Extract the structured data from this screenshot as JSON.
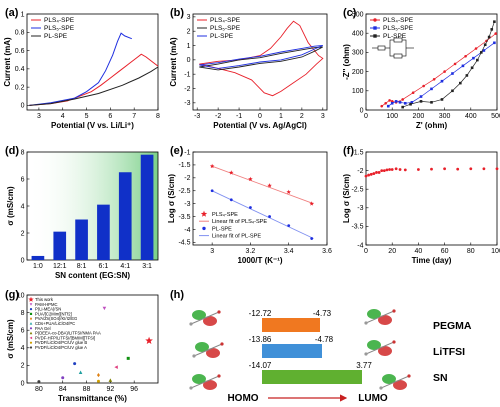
{
  "chart_data": [
    {
      "panel": "(a)",
      "type": "line",
      "xlabel": "Potential (V vs. Li/Li⁺)",
      "ylabel": "Current (mA)",
      "xlim": [
        2.5,
        8
      ],
      "ylim": [
        -0.05,
        1.0
      ],
      "xticks": [
        3,
        4,
        5,
        6,
        7,
        8
      ],
      "yticks": [
        0.0,
        0.2,
        0.4,
        0.6,
        0.8,
        1.0
      ],
      "legend_position": "top-left",
      "series": [
        {
          "name": "PLS₄-SPE",
          "color": "#e8202a",
          "points": [
            [
              2.6,
              0.0
            ],
            [
              3.5,
              0.02
            ],
            [
              4.2,
              0.05
            ],
            [
              4.7,
              0.1
            ],
            [
              5.2,
              0.15
            ],
            [
              5.6,
              0.22
            ],
            [
              6.0,
              0.3
            ],
            [
              6.4,
              0.38
            ],
            [
              6.8,
              0.46
            ],
            [
              7.1,
              0.52
            ],
            [
              7.3,
              0.56
            ],
            [
              7.5,
              0.53
            ],
            [
              7.8,
              0.47
            ],
            [
              8.0,
              0.43
            ]
          ]
        },
        {
          "name": "PLS₅-SPE",
          "color": "#1f2fe0",
          "points": [
            [
              2.6,
              0.0
            ],
            [
              3.5,
              0.03
            ],
            [
              4.5,
              0.08
            ],
            [
              5.0,
              0.15
            ],
            [
              5.5,
              0.25
            ],
            [
              5.8,
              0.38
            ],
            [
              6.1,
              0.55
            ],
            [
              6.3,
              0.7
            ],
            [
              6.45,
              0.79
            ],
            [
              6.6,
              0.76
            ],
            [
              6.9,
              0.73
            ]
          ]
        },
        {
          "name": "PL-SPE",
          "color": "#222222",
          "points": [
            [
              2.6,
              0.0
            ],
            [
              3.5,
              0.02
            ],
            [
              4.5,
              0.07
            ],
            [
              5.5,
              0.13
            ],
            [
              6.5,
              0.22
            ],
            [
              7.2,
              0.3
            ],
            [
              7.7,
              0.37
            ],
            [
              8.0,
              0.42
            ]
          ]
        }
      ]
    },
    {
      "panel": "(b)",
      "type": "line",
      "xlabel": "Potential (V vs. Ag/AgCl)",
      "ylabel": "Current (mA)",
      "xlim": [
        -3.2,
        3.2
      ],
      "ylim": [
        -3.5,
        3.2
      ],
      "xticks": [
        -3,
        -2,
        -1,
        0,
        1,
        2,
        3
      ],
      "yticks": [
        -3,
        -2,
        -1,
        0,
        1,
        2,
        3
      ],
      "legend_position": "top-left",
      "series": [
        {
          "name": "PLS₄-SPE",
          "color": "#e8202a",
          "points": [
            [
              -2.9,
              -0.3
            ],
            [
              -2.0,
              -0.1
            ],
            [
              -1.0,
              0.0
            ],
            [
              0.0,
              0.3
            ],
            [
              0.5,
              0.8
            ],
            [
              1.0,
              1.6
            ],
            [
              1.3,
              2.2
            ],
            [
              1.6,
              2.7
            ],
            [
              1.9,
              2.4
            ],
            [
              2.3,
              1.2
            ],
            [
              2.8,
              0.3
            ],
            [
              3.0,
              0.1
            ],
            [
              2.7,
              -0.3
            ],
            [
              2.2,
              -1.0
            ],
            [
              1.6,
              -1.6
            ],
            [
              1.0,
              -2.2
            ],
            [
              0.6,
              -2.5
            ],
            [
              0.2,
              -2.3
            ],
            [
              -0.4,
              -1.4
            ],
            [
              -1.2,
              -0.9
            ],
            [
              -2.0,
              -0.6
            ],
            [
              -2.9,
              -0.3
            ]
          ]
        },
        {
          "name": "PLS₅-SPE",
          "color": "#222222",
          "points": [
            [
              -2.9,
              -0.5
            ],
            [
              -2.0,
              -0.3
            ],
            [
              -1.0,
              0.0
            ],
            [
              0.0,
              0.15
            ],
            [
              1.0,
              0.45
            ],
            [
              2.0,
              0.7
            ],
            [
              2.6,
              0.85
            ],
            [
              3.0,
              0.9
            ],
            [
              2.6,
              0.6
            ],
            [
              2.0,
              0.2
            ],
            [
              1.0,
              -0.1
            ],
            [
              0.0,
              -0.25
            ],
            [
              -1.0,
              -0.5
            ],
            [
              -2.0,
              -0.7
            ],
            [
              -2.9,
              -0.5
            ]
          ]
        },
        {
          "name": "PL-SPE",
          "color": "#1f2fe0",
          "points": [
            [
              -2.9,
              -0.35
            ],
            [
              -2.0,
              -0.2
            ],
            [
              -1.0,
              0.05
            ],
            [
              0.0,
              0.25
            ],
            [
              1.0,
              0.55
            ],
            [
              2.0,
              0.8
            ],
            [
              2.6,
              0.95
            ],
            [
              3.0,
              1.0
            ],
            [
              2.6,
              0.75
            ],
            [
              2.0,
              0.35
            ],
            [
              1.0,
              0.0
            ],
            [
              0.0,
              -0.15
            ],
            [
              -1.0,
              -0.4
            ],
            [
              -2.0,
              -0.6
            ],
            [
              -2.9,
              -0.35
            ]
          ]
        }
      ]
    },
    {
      "panel": "(c)",
      "type": "scatter",
      "xlabel": "Z' (ohm)",
      "ylabel": "-Z'' (ohm)",
      "xlim": [
        0,
        500
      ],
      "ylim": [
        0,
        500
      ],
      "xticks": [
        0,
        100,
        200,
        300,
        400,
        500
      ],
      "yticks": [
        0,
        100,
        200,
        300,
        400,
        500
      ],
      "legend_position": "top-left",
      "series": [
        {
          "name": "PLS₄-SPE",
          "color": "#e8202a",
          "points": [
            [
              60,
              20
            ],
            [
              75,
              35
            ],
            [
              90,
              50
            ],
            [
              100,
              45
            ],
            [
              115,
              40
            ],
            [
              140,
              55
            ],
            [
              180,
              90
            ],
            [
              220,
              125
            ],
            [
              260,
              160
            ],
            [
              300,
              200
            ],
            [
              340,
              240
            ],
            [
              380,
              280
            ],
            [
              420,
              320
            ],
            [
              460,
              360
            ],
            [
              495,
              398
            ]
          ]
        },
        {
          "name": "PLS₅-SPE",
          "color": "#1f2fe0",
          "points": [
            [
              85,
              20
            ],
            [
              100,
              35
            ],
            [
              115,
              45
            ],
            [
              130,
              40
            ],
            [
              150,
              35
            ],
            [
              175,
              40
            ],
            [
              210,
              70
            ],
            [
              250,
              110
            ],
            [
              290,
              150
            ],
            [
              330,
              190
            ],
            [
              370,
              230
            ],
            [
              410,
              270
            ],
            [
              450,
              310
            ],
            [
              490,
              350
            ]
          ]
        },
        {
          "name": "PL-SPE",
          "color": "#222222",
          "points": [
            [
              140,
              15
            ],
            [
              170,
              30
            ],
            [
              210,
              45
            ],
            [
              250,
              40
            ],
            [
              290,
              55
            ],
            [
              330,
              100
            ],
            [
              360,
              140
            ],
            [
              385,
              180
            ],
            [
              405,
              220
            ],
            [
              425,
              260
            ],
            [
              440,
              300
            ],
            [
              455,
              340
            ],
            [
              470,
              380
            ],
            [
              480,
              420
            ],
            [
              490,
              460
            ]
          ]
        }
      ]
    },
    {
      "panel": "(d)",
      "type": "bar",
      "xlabel": "SN content (EG:SN)",
      "ylabel": "σ (mS/cm)",
      "categories": [
        "1:0",
        "12:1",
        "8:1",
        "6:1",
        "4:1",
        "3:1"
      ],
      "values": [
        0.3,
        2.1,
        3.0,
        4.1,
        6.5,
        7.8
      ],
      "ylim": [
        0,
        8
      ],
      "yticks": [
        0,
        2,
        4,
        6,
        8
      ],
      "colors": {
        "bar": "#1030c8",
        "gradient": "#4ec060"
      }
    },
    {
      "panel": "(e)",
      "type": "scatter",
      "xlabel": "1000/T (K⁻¹)",
      "ylabel": "Log σ (S/cm)",
      "xlim": [
        2.9,
        3.6
      ],
      "ylim": [
        -4.6,
        -1.0
      ],
      "xticks": [
        3.0,
        3.2,
        3.4,
        3.6
      ],
      "yticks": [
        -4.5,
        -4.0,
        -3.5,
        -3.0,
        -2.5,
        -2.0,
        -1.5,
        -1.0
      ],
      "legend_position": "bottom-left",
      "series": [
        {
          "name": "PLS₄-SPE",
          "color": "#e8202a",
          "points": [
            [
              3.0,
              -1.55
            ],
            [
              3.1,
              -1.8
            ],
            [
              3.2,
              -2.05
            ],
            [
              3.3,
              -2.3
            ],
            [
              3.4,
              -2.55
            ],
            [
              3.52,
              -3.0
            ]
          ]
        },
        {
          "name": "Linear fit of PLS₄-SPE",
          "color": "#f08080",
          "points": [
            [
              3.0,
              -1.55
            ],
            [
              3.53,
              -3.0
            ]
          ]
        },
        {
          "name": "PL-SPE",
          "color": "#1f2fe0",
          "points": [
            [
              3.0,
              -2.5
            ],
            [
              3.1,
              -2.85
            ],
            [
              3.2,
              -3.15
            ],
            [
              3.3,
              -3.5
            ],
            [
              3.4,
              -3.85
            ],
            [
              3.52,
              -4.35
            ]
          ]
        },
        {
          "name": "Linear fit of PL-SPE",
          "color": "#8090f0",
          "points": [
            [
              3.0,
              -2.5
            ],
            [
              3.53,
              -4.35
            ]
          ]
        }
      ]
    },
    {
      "panel": "(f)",
      "type": "scatter",
      "xlabel": "Time (day)",
      "ylabel": "Log σ (S/cm)",
      "xlim": [
        0,
        100
      ],
      "ylim": [
        -4.0,
        -1.5
      ],
      "xticks": [
        0,
        20,
        40,
        60,
        80,
        100
      ],
      "yticks": [
        -4.0,
        -3.5,
        -3.0,
        -2.5,
        -2.0,
        -1.5
      ],
      "series": [
        {
          "name": "",
          "color": "#e8202a",
          "points": [
            [
              0,
              -2.15
            ],
            [
              2,
              -2.12
            ],
            [
              4,
              -2.1
            ],
            [
              6,
              -2.08
            ],
            [
              8,
              -2.05
            ],
            [
              10,
              -2.05
            ],
            [
              12,
              -2.0
            ],
            [
              14,
              -2.0
            ],
            [
              16,
              -1.98
            ],
            [
              18,
              -1.97
            ],
            [
              20,
              -1.97
            ],
            [
              23,
              -1.95
            ],
            [
              26,
              -1.97
            ],
            [
              30,
              -1.98
            ],
            [
              40,
              -1.97
            ],
            [
              50,
              -1.96
            ],
            [
              60,
              -1.95
            ],
            [
              70,
              -1.96
            ],
            [
              80,
              -1.95
            ],
            [
              90,
              -1.95
            ],
            [
              100,
              -1.95
            ]
          ]
        }
      ]
    },
    {
      "panel": "(g)",
      "type": "scatter",
      "xlabel": "Transmittance (%)",
      "ylabel": "σ (mS/cm)",
      "xlim": [
        78,
        100
      ],
      "ylim": [
        0,
        10
      ],
      "xticks": [
        80,
        84,
        88,
        92,
        96
      ],
      "yticks": [
        0,
        2,
        4,
        6,
        8,
        10
      ],
      "legend_position": "top-left",
      "series": [
        {
          "name": "This work",
          "color": "#e8202a",
          "marker": "star",
          "points": [
            [
              98.5,
              4.8
            ]
          ]
        },
        {
          "name": "PAM-HPMC",
          "color": "#c050c0",
          "marker": "v",
          "points": [
            [
              91,
              8.5
            ]
          ]
        },
        {
          "name": "P(Li-MEA)/SN",
          "color": "#2040c0",
          "marker": "o",
          "points": [
            [
              86,
              2.2
            ]
          ]
        },
        {
          "name": "PUA/[C2Mim][NTf2]",
          "color": "#109010",
          "marker": "s",
          "points": [
            [
              95,
              2.8
            ]
          ]
        },
        {
          "name": "PVA/Zn(SO4)/KI/I2/EG",
          "color": "#e08010",
          "marker": "d",
          "points": [
            [
              90,
              0.9
            ]
          ]
        },
        {
          "name": "CDs+PUA/LiClO4/PC",
          "color": "#20a0a0",
          "marker": "^",
          "points": [
            [
              87,
              1.2
            ]
          ]
        },
        {
          "name": "PAA Gel",
          "color": "#8040c0",
          "marker": "o",
          "points": [
            [
              84,
              0.6
            ]
          ]
        },
        {
          "name": "P(DEEA-co-DBA)/LiTFSI/NMA PAA",
          "color": "#808000",
          "marker": "^",
          "points": [
            [
              92,
              0.3
            ]
          ]
        },
        {
          "name": "PVDF-HFP/LiTFSI/[BMIM][TFSI]",
          "color": "#e04080",
          "marker": "<",
          "points": [
            [
              93,
              1.8
            ]
          ]
        },
        {
          "name": "PVDF/LiClO4/PC/UV glue B",
          "color": "#d0a000",
          "marker": "o",
          "points": [
            [
              90,
              0.2
            ]
          ]
        },
        {
          "name": "PVDF/LiClO4/PC/UV glue A",
          "color": "#404040",
          "marker": "o",
          "points": [
            [
              80,
              0.15
            ]
          ]
        }
      ]
    },
    {
      "panel": "(h)",
      "type": "bar",
      "xlabel": "",
      "ylabel": "",
      "categories": [
        "PEGMA",
        "LiTFSI",
        "SN"
      ],
      "series": [
        {
          "name": "HOMO",
          "values": [
            -12.72,
            -13.86,
            -14.07
          ]
        },
        {
          "name": "LUMO",
          "values": [
            -4.73,
            -4.78,
            3.77
          ]
        }
      ],
      "colors": {
        "PEGMA": "#f07820",
        "LiTFSI": "#4090d8",
        "SN": "#60b030",
        "arrow": "#c82020"
      },
      "axis_caption_left": "HOMO",
      "axis_caption_right": "LUMO"
    }
  ]
}
